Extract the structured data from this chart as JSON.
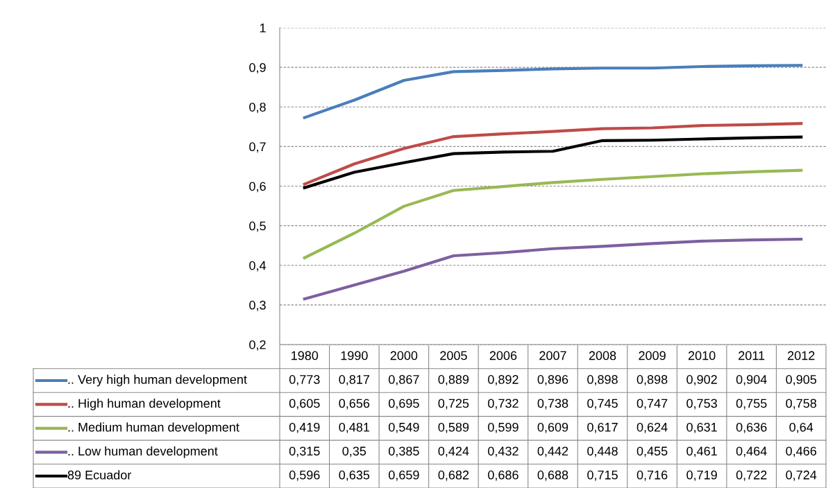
{
  "chart_data": {
    "type": "line",
    "categories": [
      "1980",
      "1990",
      "2000",
      "2005",
      "2006",
      "2007",
      "2008",
      "2009",
      "2010",
      "2011",
      "2012"
    ],
    "ylim": [
      0.2,
      1
    ],
    "yticks": [
      {
        "value": 0.2,
        "label": "0,2"
      },
      {
        "value": 0.3,
        "label": "0,3"
      },
      {
        "value": 0.4,
        "label": "0,4"
      },
      {
        "value": 0.5,
        "label": "0,5"
      },
      {
        "value": 0.6,
        "label": "0,6"
      },
      {
        "value": 0.7,
        "label": "0,7"
      },
      {
        "value": 0.8,
        "label": "0,8"
      },
      {
        "value": 0.9,
        "label": "0,9"
      },
      {
        "value": 1,
        "label": "1"
      }
    ],
    "grid": "y",
    "legend": "bottom",
    "marker": "none",
    "line_style": "solid",
    "series": [
      {
        "name": ".. Very high human development",
        "color": "#4a7ebb",
        "values": [
          0.773,
          0.817,
          0.867,
          0.889,
          0.892,
          0.896,
          0.898,
          0.898,
          0.902,
          0.904,
          0.905
        ],
        "value_labels": [
          "0,773",
          "0,817",
          "0,867",
          "0,889",
          "0,892",
          "0,896",
          "0,898",
          "0,898",
          "0,902",
          "0,904",
          "0,905"
        ]
      },
      {
        "name": ".. High human development",
        "color": "#be4b48",
        "values": [
          0.605,
          0.656,
          0.695,
          0.725,
          0.732,
          0.738,
          0.745,
          0.747,
          0.753,
          0.755,
          0.758
        ],
        "value_labels": [
          "0,605",
          "0,656",
          "0,695",
          "0,725",
          "0,732",
          "0,738",
          "0,745",
          "0,747",
          "0,753",
          "0,755",
          "0,758"
        ]
      },
      {
        "name": ".. Medium human development",
        "color": "#98b954",
        "values": [
          0.419,
          0.481,
          0.549,
          0.589,
          0.599,
          0.609,
          0.617,
          0.624,
          0.631,
          0.636,
          0.64
        ],
        "value_labels": [
          "0,419",
          "0,481",
          "0,549",
          "0,589",
          "0,599",
          "0,609",
          "0,617",
          "0,624",
          "0,631",
          "0,636",
          "0,64"
        ]
      },
      {
        "name": ".. Low human development",
        "color": "#7d60a0",
        "values": [
          0.315,
          0.35,
          0.385,
          0.424,
          0.432,
          0.442,
          0.448,
          0.455,
          0.461,
          0.464,
          0.466
        ],
        "value_labels": [
          "0,315",
          "0,35",
          "0,385",
          "0,424",
          "0,432",
          "0,442",
          "0,448",
          "0,455",
          "0,461",
          "0,464",
          "0,466"
        ]
      },
      {
        "name": "89 Ecuador",
        "color": "#000000",
        "values": [
          0.596,
          0.635,
          0.659,
          0.682,
          0.686,
          0.688,
          0.715,
          0.716,
          0.719,
          0.722,
          0.724
        ],
        "value_labels": [
          "0,596",
          "0,635",
          "0,659",
          "0,682",
          "0,686",
          "0,688",
          "0,715",
          "0,716",
          "0,719",
          "0,722",
          "0,724"
        ]
      }
    ]
  }
}
